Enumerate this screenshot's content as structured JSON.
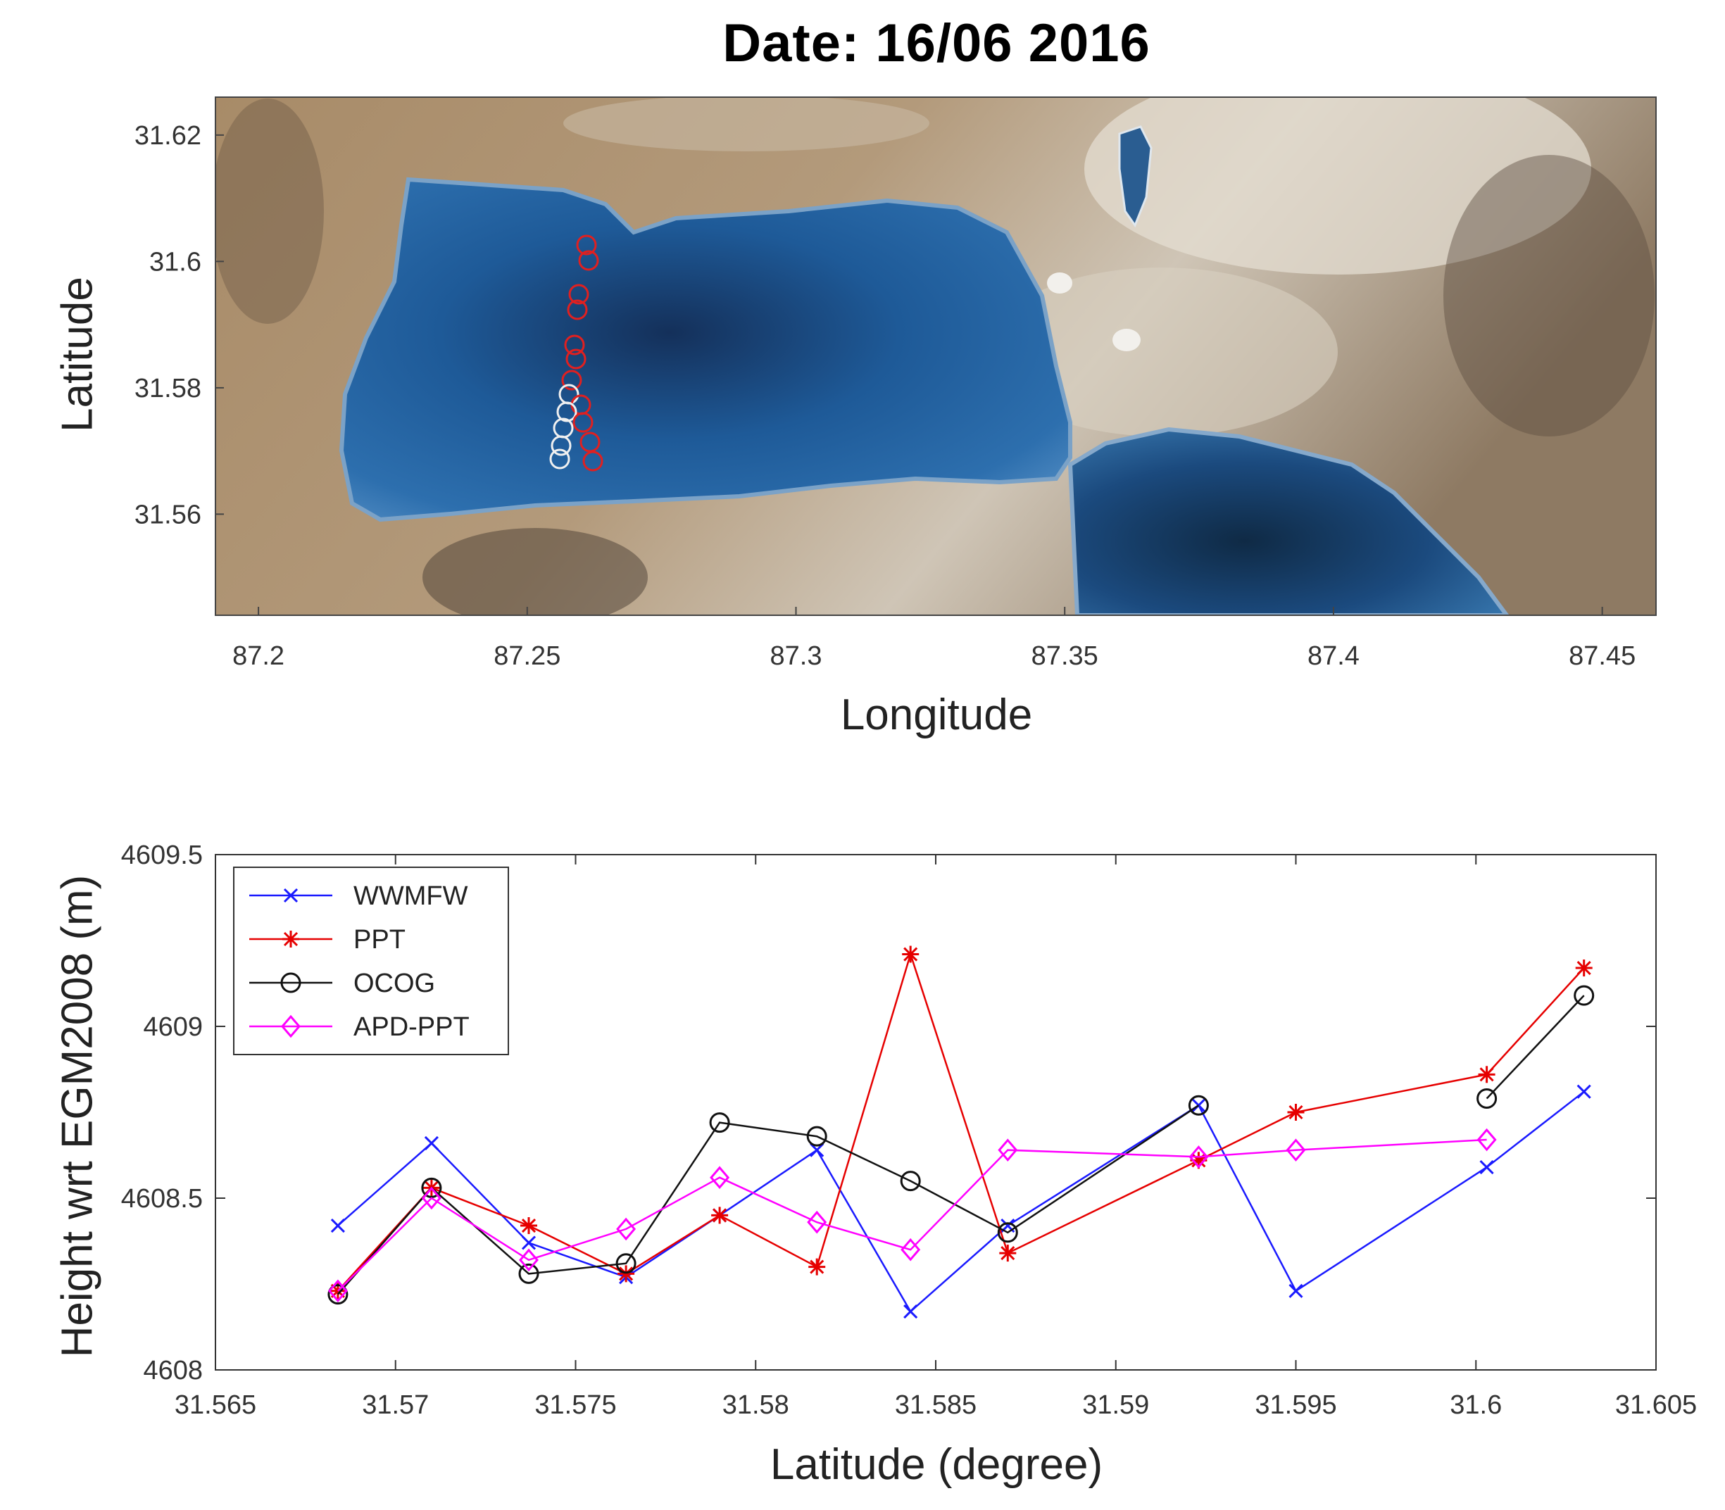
{
  "figure": {
    "title": "Date: 16/06 2016"
  },
  "map": {
    "xlabel": "Longitude",
    "ylabel": "Latitude",
    "xticks": [
      "87.2",
      "87.25",
      "87.3",
      "87.35",
      "87.4",
      "87.45"
    ],
    "yticks": [
      "31.56",
      "31.58",
      "31.6",
      "31.62"
    ],
    "xlim": [
      87.192,
      87.46
    ],
    "ylim": [
      31.544,
      31.626
    ],
    "track_marker_color_in_lake": "#e02020",
    "track_marker_color_south": "#f0f0f0"
  },
  "chart_data": {
    "type": "line",
    "xlabel": "Latitude (degree)",
    "ylabel": "Height wrt EGM2008 (m)",
    "xlim": [
      31.565,
      31.605
    ],
    "ylim": [
      4608,
      4609.5
    ],
    "xticks": [
      "31.565",
      "31.57",
      "31.575",
      "31.58",
      "31.585",
      "31.59",
      "31.595",
      "31.6",
      "31.605"
    ],
    "yticks": [
      "4608",
      "4608.5",
      "4609",
      "4609.5"
    ],
    "legend_position": "top-left",
    "series": [
      {
        "name": "WWMFW",
        "color": "#1a1aff",
        "marker": "x",
        "points": [
          [
            31.5684,
            4608.42
          ],
          [
            31.571,
            4608.66
          ],
          [
            31.5737,
            4608.37
          ],
          [
            31.5764,
            4608.27
          ],
          [
            31.579,
            4608.45
          ],
          [
            31.5817,
            4608.64
          ],
          [
            31.5843,
            4608.17
          ],
          [
            31.587,
            4608.42
          ],
          [
            31.5923,
            4608.77
          ],
          [
            31.595,
            4608.23
          ],
          [
            31.6003,
            4608.59
          ],
          [
            31.603,
            4608.81
          ]
        ]
      },
      {
        "name": "PPT",
        "color": "#e60000",
        "marker": "asterisk",
        "points": [
          [
            31.5684,
            4608.23
          ],
          [
            31.571,
            4608.53
          ],
          [
            31.5737,
            4608.42
          ],
          [
            31.5764,
            4608.28
          ],
          [
            31.579,
            4608.45
          ],
          [
            31.5817,
            4608.3
          ],
          [
            31.5843,
            4609.21
          ],
          [
            31.587,
            4608.34
          ],
          [
            31.5923,
            4608.61
          ],
          [
            31.595,
            4608.75
          ],
          [
            31.6003,
            4608.86
          ],
          [
            31.603,
            4609.17
          ]
        ]
      },
      {
        "name": "OCOG",
        "color": "#111111",
        "marker": "circle",
        "points": [
          [
            31.5684,
            4608.22
          ],
          [
            31.571,
            4608.53
          ],
          [
            31.5737,
            4608.28
          ],
          [
            31.5764,
            4608.31
          ],
          [
            31.579,
            4608.72
          ],
          [
            31.5817,
            4608.68
          ],
          [
            31.5843,
            4608.55
          ],
          [
            31.587,
            4608.4
          ],
          [
            31.5923,
            4608.77
          ],
          null,
          [
            31.6003,
            4608.79
          ],
          [
            31.603,
            4609.09
          ]
        ]
      },
      {
        "name": "APD-PPT",
        "color": "#ff00ff",
        "marker": "diamond",
        "points": [
          [
            31.5684,
            4608.23
          ],
          [
            31.571,
            4608.5
          ],
          [
            31.5737,
            4608.32
          ],
          [
            31.5764,
            4608.41
          ],
          [
            31.579,
            4608.56
          ],
          [
            31.5817,
            4608.43
          ],
          [
            31.5843,
            4608.35
          ],
          [
            31.587,
            4608.64
          ],
          [
            31.5923,
            4608.62
          ],
          [
            31.595,
            4608.64
          ],
          [
            31.6003,
            4608.67
          ],
          null
        ]
      }
    ]
  }
}
